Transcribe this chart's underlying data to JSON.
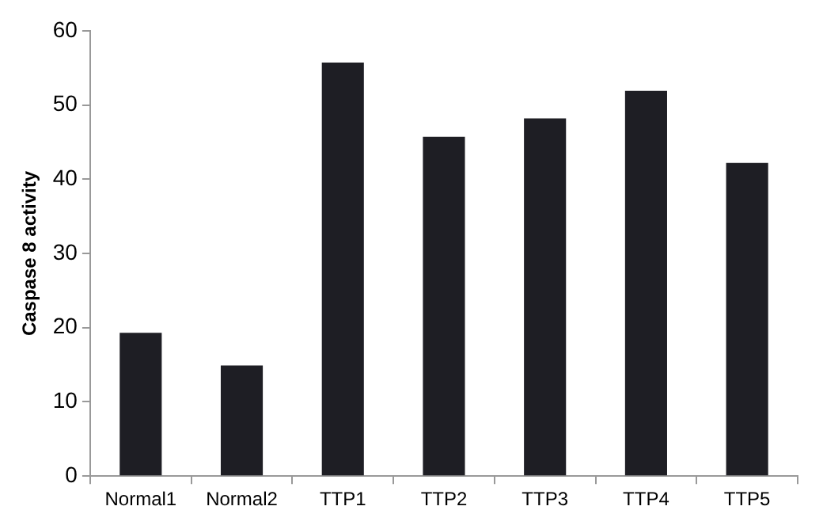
{
  "chart_data": {
    "type": "bar",
    "ylabel": "Caspase 8 activity",
    "categories": [
      "Normal1",
      "Normal2",
      "TTP1",
      "TTP2",
      "TTP3",
      "TTP4",
      "TTP5"
    ],
    "values": [
      19.3,
      14.9,
      55.7,
      45.7,
      48.2,
      51.9,
      42.2
    ],
    "color": "#1e1e24",
    "ylim": [
      0,
      60
    ],
    "yticks": [
      0,
      10,
      20,
      30,
      40,
      50,
      60
    ],
    "grid": false,
    "legend": false
  }
}
